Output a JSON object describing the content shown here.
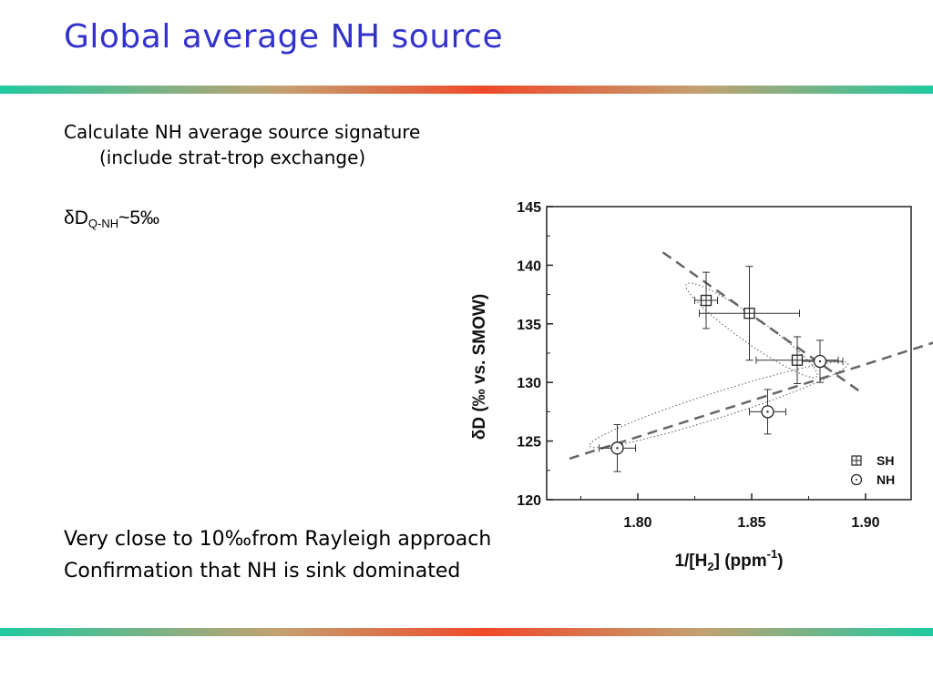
{
  "slide": {
    "title": "Global average NH source",
    "line1": "Calculate NH average source signature",
    "line2": "(include strat-trop exchange)",
    "delta_symbol": "δ",
    "delta_d": "D",
    "delta_sub": "Q-NH",
    "delta_value": "~5‰",
    "conclusion1": "Very close to 10‰from Rayleigh approach",
    "conclusion2": "Confirmation that NH is sink dominated"
  },
  "chart_data": {
    "type": "scatter",
    "xlabel_main": "1/[H",
    "xlabel_sub": "2",
    "xlabel_tail": "] (ppm",
    "xlabel_sup": "-1",
    "xlabel_close": ")",
    "ylabel": "δD (‰ vs. SMOW)",
    "xlim": [
      1.76,
      1.92
    ],
    "ylim": [
      120,
      145
    ],
    "x_ticks": [
      "1.80",
      "1.85",
      "1.90"
    ],
    "y_ticks": [
      "120",
      "125",
      "130",
      "135",
      "140",
      "145"
    ],
    "legend_position": "bottom-right",
    "series": [
      {
        "name": "SH",
        "marker": "square-plus",
        "points": [
          {
            "x": 1.83,
            "y": 137.0,
            "xerr": 0.005,
            "yerr": 2.4
          },
          {
            "x": 1.849,
            "y": 135.9,
            "xerr": 0.022,
            "yerr": 4.0
          },
          {
            "x": 1.87,
            "y": 131.9,
            "xerr": 0.018,
            "yerr": 2.0
          }
        ]
      },
      {
        "name": "NH",
        "marker": "open-circle",
        "points": [
          {
            "x": 1.791,
            "y": 124.4,
            "xerr": 0.008,
            "yerr": 2.0
          },
          {
            "x": 1.857,
            "y": 127.5,
            "xerr": 0.008,
            "yerr": 1.9
          },
          {
            "x": 1.88,
            "y": 131.8,
            "xerr": 0.01,
            "yerr": 1.8
          }
        ]
      }
    ],
    "fit_lines": [
      {
        "series": "SH",
        "x": [
          1.811,
          1.897
        ],
        "y": [
          141.1,
          129.3
        ]
      },
      {
        "series": "NH",
        "x": [
          1.77,
          1.938
        ],
        "y": [
          123.5,
          133.9
        ]
      }
    ]
  }
}
